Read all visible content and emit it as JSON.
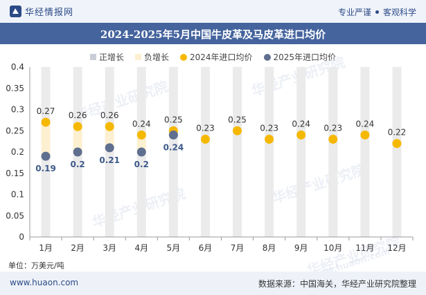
{
  "brand": {
    "name": "华经情报网"
  },
  "tagline": {
    "left": "专业严谨",
    "right": "客观科学"
  },
  "title": "2024-2025年5月中国牛皮革及马皮革进口均价",
  "legend": [
    {
      "label": "正增长",
      "color": "#c9cdd6",
      "kind": "rect"
    },
    {
      "label": "负增长",
      "color": "#fdf0d0",
      "kind": "rect"
    },
    {
      "label": "2024年进口均价",
      "color": "#f5b800",
      "kind": "dot"
    },
    {
      "label": "2025年进口均价",
      "color": "#5f6f8f",
      "kind": "dot"
    }
  ],
  "chart_data": {
    "type": "scatter",
    "title": "2024-2025年5月中国牛皮革及马皮革进口均价",
    "categories": [
      "1月",
      "2月",
      "3月",
      "4月",
      "5月",
      "6月",
      "7月",
      "8月",
      "9月",
      "10月",
      "11月",
      "12月"
    ],
    "series": [
      {
        "name": "2024年进口均价",
        "color": "#f5b800",
        "values": [
          0.27,
          0.26,
          0.26,
          0.24,
          0.25,
          0.23,
          0.25,
          0.23,
          0.24,
          0.23,
          0.24,
          0.22
        ]
      },
      {
        "name": "2025年进口均价",
        "color": "#5f6f8f",
        "values": [
          0.19,
          0.2,
          0.21,
          0.2,
          0.24,
          null,
          null,
          null,
          null,
          null,
          null,
          null
        ]
      }
    ],
    "range_bars": {
      "max": 0.4,
      "color": "#ebebeb"
    },
    "change_bars": [
      {
        "month": "1月",
        "from": 0.19,
        "to": 0.27,
        "sign": "负增长"
      },
      {
        "month": "2月",
        "from": 0.2,
        "to": 0.26,
        "sign": "负增长"
      },
      {
        "month": "3月",
        "from": 0.21,
        "to": 0.26,
        "sign": "负增长"
      },
      {
        "month": "4月",
        "from": 0.2,
        "to": 0.24,
        "sign": "负增长"
      },
      {
        "month": "5月",
        "from": 0.24,
        "to": 0.25,
        "sign": "负增长"
      }
    ],
    "yticks": [
      "0",
      "0.05",
      "0.1",
      "0.15",
      "0.2",
      "0.25",
      "0.3",
      "0.35",
      "0.4"
    ],
    "ylim": [
      0,
      0.4
    ],
    "xlabel": "",
    "ylabel": "",
    "grid": false,
    "legend_position": "top"
  },
  "unit": "单位：万美元/吨",
  "footer": {
    "site": "www.huaon.com",
    "source": "数据来源：中国海关，华经产业研究院整理"
  },
  "watermark": {
    "text": "华经产业研究院",
    "site": "www.huaon.com"
  }
}
